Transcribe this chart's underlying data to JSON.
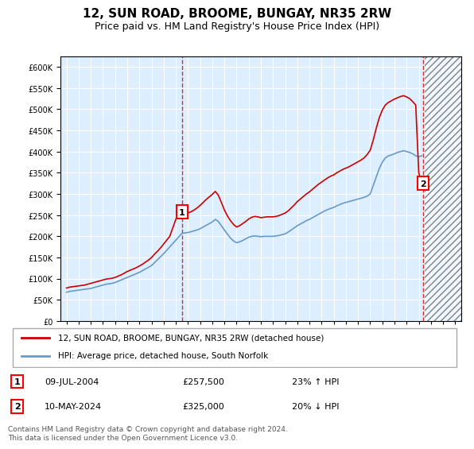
{
  "title": "12, SUN ROAD, BROOME, BUNGAY, NR35 2RW",
  "subtitle": "Price paid vs. HM Land Registry's House Price Index (HPI)",
  "legend_line1": "12, SUN ROAD, BROOME, BUNGAY, NR35 2RW (detached house)",
  "legend_line2": "HPI: Average price, detached house, South Norfolk",
  "sale1_date": "09-JUL-2004",
  "sale1_price": "£257,500",
  "sale1_hpi": "23% ↑ HPI",
  "sale2_date": "10-MAY-2024",
  "sale2_price": "£325,000",
  "sale2_hpi": "20% ↓ HPI",
  "footer": "Contains HM Land Registry data © Crown copyright and database right 2024.\nThis data is licensed under the Open Government Licence v3.0.",
  "ylim": [
    0,
    625000
  ],
  "yticks": [
    0,
    50000,
    100000,
    150000,
    200000,
    250000,
    300000,
    350000,
    400000,
    450000,
    500000,
    550000,
    600000
  ],
  "xlim_start": 1994.5,
  "xlim_end": 2027.5,
  "red_color": "#cc0000",
  "blue_color": "#6699cc",
  "bg_color": "#ddeeff",
  "grid_color": "#ffffff",
  "sale1_x": 2004.52,
  "sale2_x": 2024.36,
  "hpi_years": [
    1995,
    1995.25,
    1995.5,
    1995.75,
    1996,
    1996.25,
    1996.5,
    1996.75,
    1997,
    1997.25,
    1997.5,
    1997.75,
    1998,
    1998.25,
    1998.5,
    1998.75,
    1999,
    1999.25,
    1999.5,
    1999.75,
    2000,
    2000.25,
    2000.5,
    2000.75,
    2001,
    2001.25,
    2001.5,
    2001.75,
    2002,
    2002.25,
    2002.5,
    2002.75,
    2003,
    2003.25,
    2003.5,
    2003.75,
    2004,
    2004.25,
    2004.5,
    2004.75,
    2005,
    2005.25,
    2005.5,
    2005.75,
    2006,
    2006.25,
    2006.5,
    2006.75,
    2007,
    2007.25,
    2007.5,
    2007.75,
    2008,
    2008.25,
    2008.5,
    2008.75,
    2009,
    2009.25,
    2009.5,
    2009.75,
    2010,
    2010.25,
    2010.5,
    2010.75,
    2011,
    2011.25,
    2011.5,
    2011.75,
    2012,
    2012.25,
    2012.5,
    2012.75,
    2013,
    2013.25,
    2013.5,
    2013.75,
    2014,
    2014.25,
    2014.5,
    2014.75,
    2015,
    2015.25,
    2015.5,
    2015.75,
    2016,
    2016.25,
    2016.5,
    2016.75,
    2017,
    2017.25,
    2017.5,
    2017.75,
    2018,
    2018.25,
    2018.5,
    2018.75,
    2019,
    2019.25,
    2019.5,
    2019.75,
    2020,
    2020.25,
    2020.5,
    2020.75,
    2021,
    2021.25,
    2021.5,
    2021.75,
    2022,
    2022.25,
    2022.5,
    2022.75,
    2023,
    2023.25,
    2023.5,
    2023.75,
    2024,
    2024.25
  ],
  "hpi_values": [
    68000,
    70000,
    71000,
    72000,
    73000,
    74000,
    75000,
    76000,
    77000,
    79000,
    81000,
    83000,
    85000,
    87000,
    88000,
    89000,
    91000,
    94000,
    97000,
    100000,
    103000,
    106000,
    109000,
    112000,
    115000,
    119000,
    123000,
    127000,
    131000,
    138000,
    145000,
    152000,
    159000,
    167000,
    175000,
    183000,
    191000,
    199000,
    207000,
    208000,
    209000,
    211000,
    213000,
    215000,
    218000,
    222000,
    226000,
    230000,
    234000,
    240000,
    235000,
    225000,
    215000,
    205000,
    196000,
    189000,
    185000,
    187000,
    190000,
    194000,
    198000,
    200000,
    201000,
    200000,
    199000,
    200000,
    200000,
    200000,
    200000,
    201000,
    202000,
    204000,
    206000,
    210000,
    215000,
    220000,
    225000,
    229000,
    233000,
    237000,
    240000,
    244000,
    248000,
    252000,
    256000,
    260000,
    263000,
    266000,
    268000,
    272000,
    275000,
    278000,
    280000,
    282000,
    284000,
    286000,
    288000,
    290000,
    292000,
    295000,
    300000,
    320000,
    340000,
    360000,
    375000,
    385000,
    390000,
    392000,
    395000,
    398000,
    400000,
    402000,
    400000,
    398000,
    395000,
    390000,
    388000,
    390000
  ],
  "red_years": [
    1995,
    1995.25,
    1995.5,
    1995.75,
    1996,
    1996.25,
    1996.5,
    1996.75,
    1997,
    1997.25,
    1997.5,
    1997.75,
    1998,
    1998.25,
    1998.5,
    1998.75,
    1999,
    1999.25,
    1999.5,
    1999.75,
    2000,
    2000.25,
    2000.5,
    2000.75,
    2001,
    2001.25,
    2001.5,
    2001.75,
    2002,
    2002.25,
    2002.5,
    2002.75,
    2003,
    2003.25,
    2003.5,
    2003.75,
    2004,
    2004.25,
    2004.5,
    2004.75,
    2005,
    2005.25,
    2005.5,
    2005.75,
    2006,
    2006.25,
    2006.5,
    2006.75,
    2007,
    2007.25,
    2007.5,
    2007.75,
    2008,
    2008.25,
    2008.5,
    2008.75,
    2009,
    2009.25,
    2009.5,
    2009.75,
    2010,
    2010.25,
    2010.5,
    2010.75,
    2011,
    2011.25,
    2011.5,
    2011.75,
    2012,
    2012.25,
    2012.5,
    2012.75,
    2013,
    2013.25,
    2013.5,
    2013.75,
    2014,
    2014.25,
    2014.5,
    2014.75,
    2015,
    2015.25,
    2015.5,
    2015.75,
    2016,
    2016.25,
    2016.5,
    2016.75,
    2017,
    2017.25,
    2017.5,
    2017.75,
    2018,
    2018.25,
    2018.5,
    2018.75,
    2019,
    2019.25,
    2019.5,
    2019.75,
    2020,
    2020.25,
    2020.5,
    2020.75,
    2021,
    2021.25,
    2021.5,
    2021.75,
    2022,
    2022.25,
    2022.5,
    2022.75,
    2023,
    2023.25,
    2023.5,
    2023.75,
    2024,
    2024.25
  ],
  "red_values": [
    78000,
    80000,
    81000,
    82000,
    83000,
    84000,
    85000,
    87000,
    89000,
    91000,
    93000,
    95000,
    97000,
    99000,
    100000,
    101000,
    103000,
    106000,
    109000,
    113000,
    117000,
    120000,
    123000,
    126000,
    130000,
    134000,
    139000,
    144000,
    150000,
    158000,
    165000,
    173000,
    182000,
    191000,
    200000,
    220000,
    240000,
    257500,
    262000,
    258000,
    255000,
    258000,
    262000,
    267000,
    273000,
    280000,
    287000,
    293000,
    299000,
    306000,
    297000,
    280000,
    262000,
    248000,
    237000,
    228000,
    222000,
    225000,
    230000,
    235000,
    241000,
    245000,
    247000,
    246000,
    244000,
    245000,
    246000,
    246000,
    246000,
    247000,
    249000,
    252000,
    255000,
    260000,
    267000,
    274000,
    282000,
    288000,
    294000,
    300000,
    305000,
    311000,
    317000,
    323000,
    328000,
    333000,
    338000,
    342000,
    345000,
    350000,
    354000,
    358000,
    361000,
    364000,
    368000,
    372000,
    376000,
    380000,
    385000,
    393000,
    403000,
    427000,
    455000,
    480000,
    498000,
    510000,
    516000,
    520000,
    524000,
    527000,
    530000,
    532000,
    529000,
    525000,
    518000,
    510000,
    350000,
    325000
  ]
}
